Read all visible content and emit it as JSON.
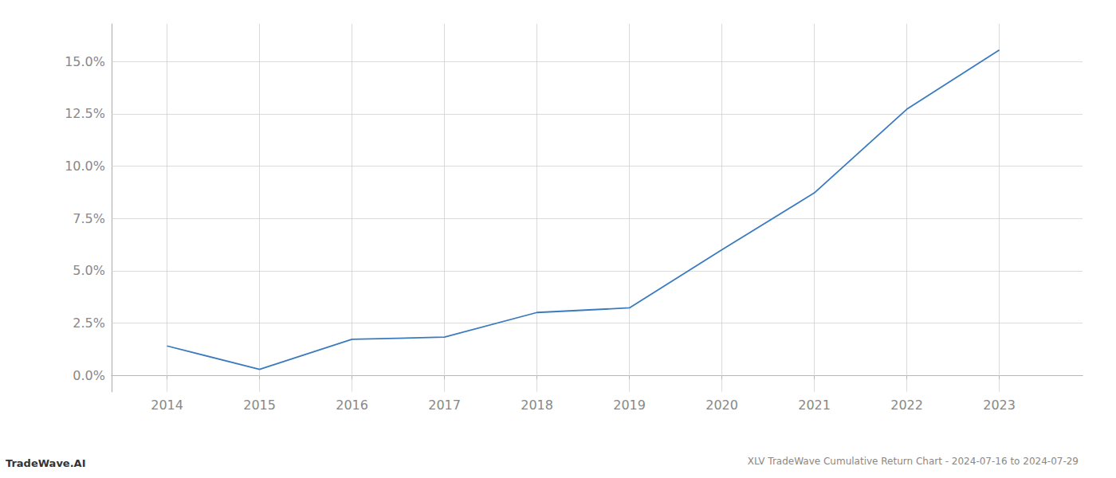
{
  "chart_data": {
    "type": "line",
    "title": "XLV TradeWave Cumulative Return Chart - 2024-07-16 to 2024-07-29",
    "annotations": [
      "TradeWave.AI"
    ],
    "x": [
      2014,
      2015,
      2016,
      2017,
      2018,
      2019,
      2020,
      2021,
      2022,
      2023
    ],
    "values": [
      1.4,
      0.28,
      1.72,
      1.82,
      3.0,
      3.22,
      6.0,
      8.72,
      12.72,
      15.55
    ],
    "color": "#3a7abf",
    "xlim": [
      2013.4,
      2023.9
    ],
    "xticks": [
      2014,
      2015,
      2016,
      2017,
      2018,
      2019,
      2020,
      2021,
      2022,
      2023
    ],
    "ylim": [
      -0.8,
      16.8
    ],
    "yticks": [
      {
        "value": 0.0,
        "label": "0.0%"
      },
      {
        "value": 2.5,
        "label": "2.5%"
      },
      {
        "value": 5.0,
        "label": "5.0%"
      },
      {
        "value": 7.5,
        "label": "7.5%"
      },
      {
        "value": 10.0,
        "label": "10.0%"
      },
      {
        "value": 12.5,
        "label": "12.5%"
      },
      {
        "value": 15.0,
        "label": "15.0%"
      }
    ],
    "grid": true
  }
}
